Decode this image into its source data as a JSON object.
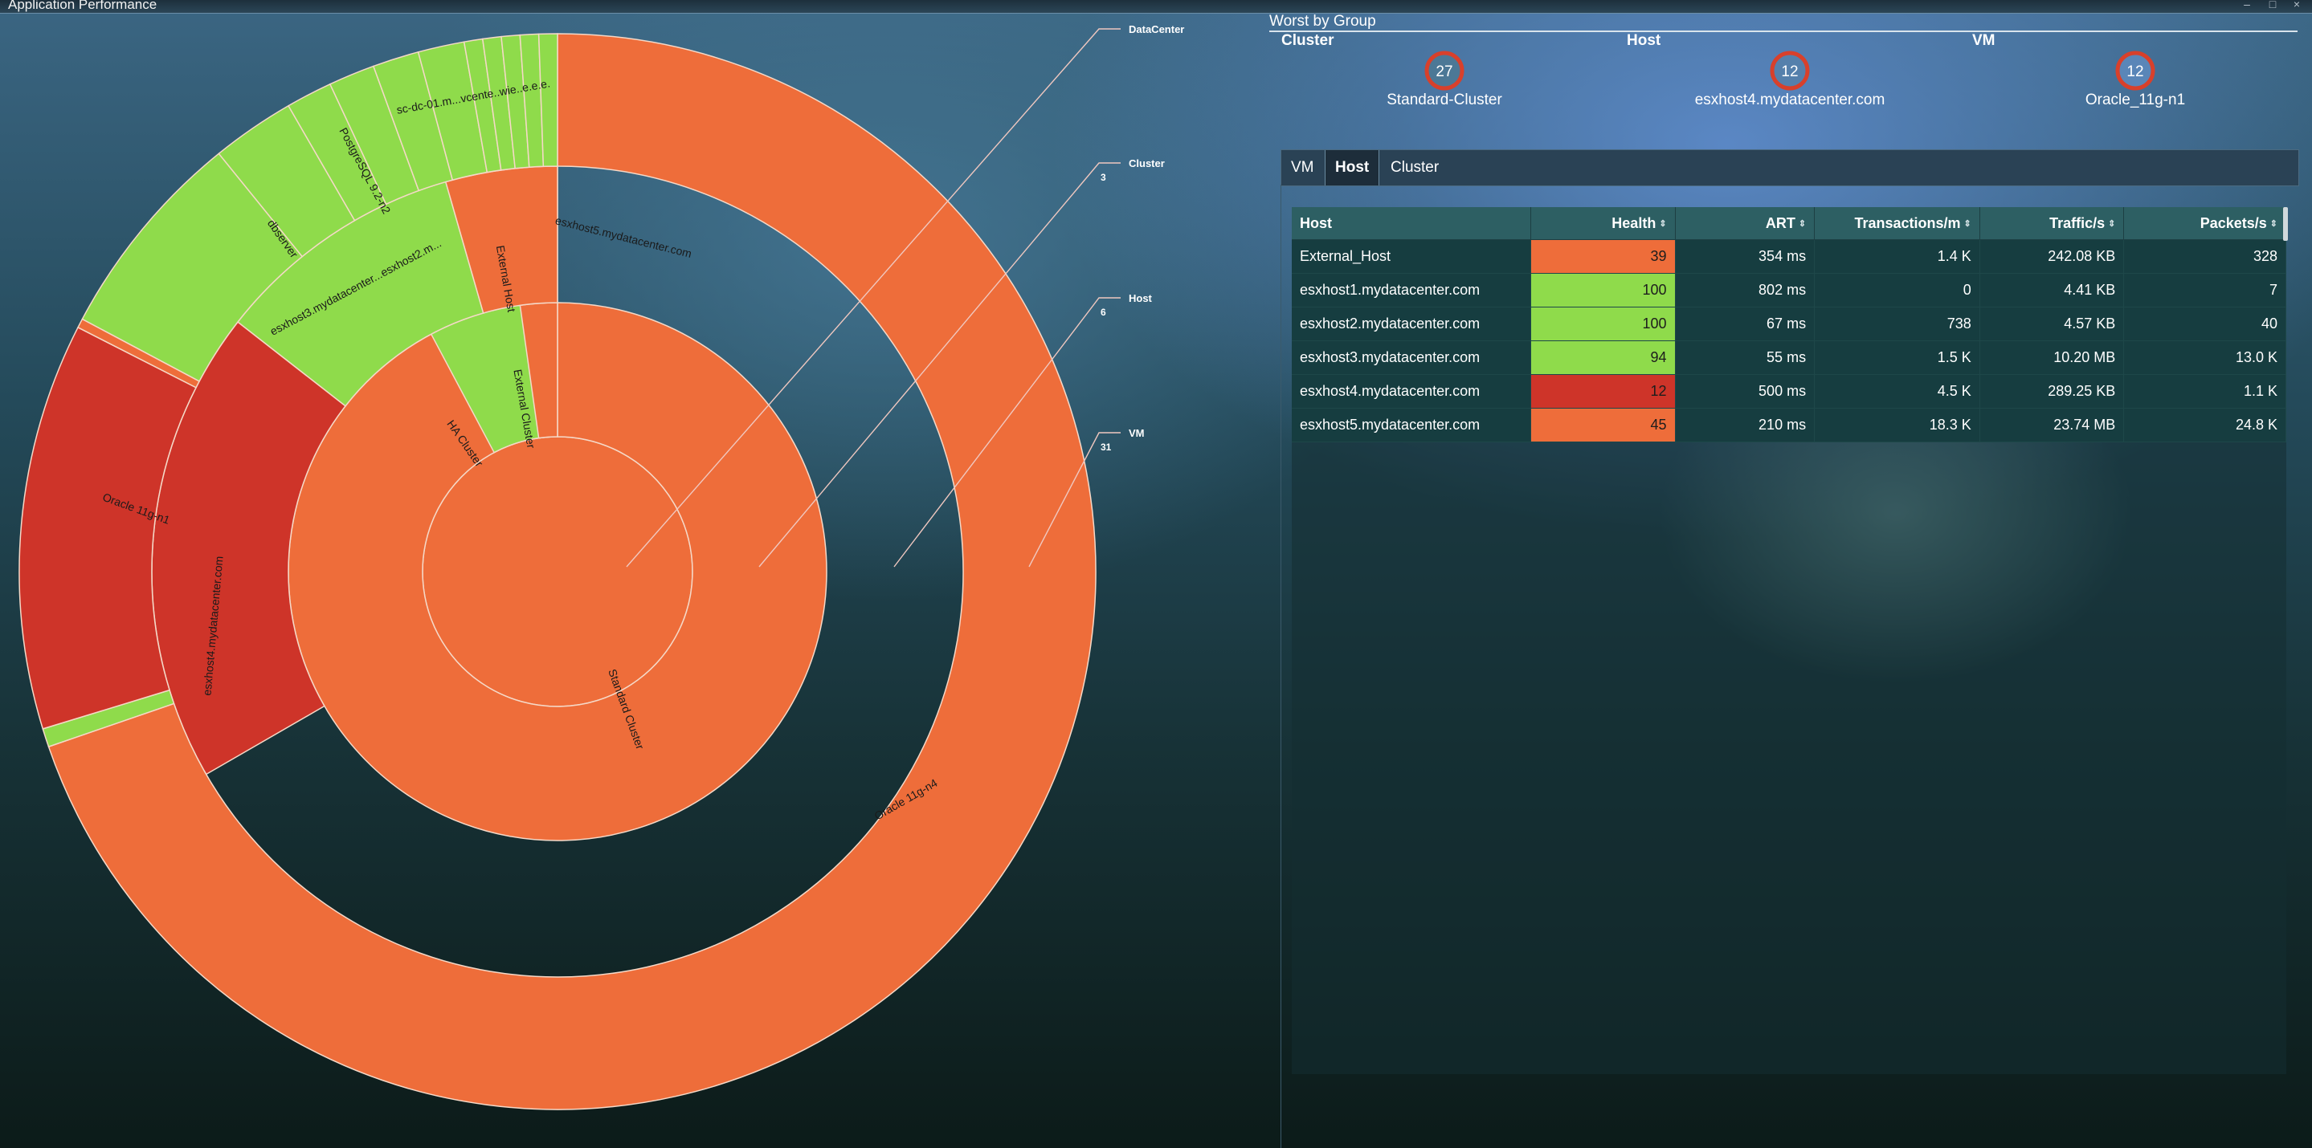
{
  "window": {
    "title": "Application Performance"
  },
  "colors": {
    "orange": "#ee6d3a",
    "green": "#8fdb4b",
    "red": "#ce3429",
    "gaugeRing": "#d8402b"
  },
  "sunburst": {
    "labels": {
      "outer_host": "esxhost5.mydatacenter.com",
      "external_host": "External Host",
      "external_cluster": "External Cluster",
      "ha_cluster": "HA Cluster",
      "standard_cluster": "Standard Cluster",
      "oracle_n4": "Oracle 11g-n4",
      "oracle_n1": "Oracle 11g-n1",
      "esxhost4": "esxhost4.mydatacenter.com",
      "esxhost3_2": "esxhost3.mydatacenter...esxhost2.m...",
      "dbserver": "dbserver",
      "postgres": "PostgreSQL 9.2-n2",
      "scdc": "sc-dc-01.m...vcente..wie..e.e.e."
    },
    "legend": [
      {
        "name": "DataCenter",
        "count": ""
      },
      {
        "name": "Cluster",
        "count": "3"
      },
      {
        "name": "Host",
        "count": "6"
      },
      {
        "name": "VM",
        "count": "31"
      }
    ]
  },
  "worst": {
    "title": "Worst by Group",
    "groups": [
      {
        "label": "Cluster",
        "value": "27",
        "name": "Standard-Cluster"
      },
      {
        "label": "Host",
        "value": "12",
        "name": "esxhost4.mydatacenter.com"
      },
      {
        "label": "VM",
        "value": "12",
        "name": "Oracle_11g-n1"
      }
    ]
  },
  "tabs": [
    {
      "label": "VM",
      "active": false
    },
    {
      "label": "Host",
      "active": true
    },
    {
      "label": "Cluster",
      "active": false
    }
  ],
  "table": {
    "columns": [
      "Host",
      "Health",
      "ART",
      "Transactions/m",
      "Traffic/s",
      "Packets/s"
    ],
    "rows": [
      {
        "host": "External_Host",
        "health": "39",
        "health_color": "#ee6d3a",
        "art": "354 ms",
        "tx": "1.4 K",
        "traffic": "242.08 KB",
        "packets": "328"
      },
      {
        "host": "esxhost1.mydatacenter.com",
        "health": "100",
        "health_color": "#8fdb4b",
        "art": "802 ms",
        "tx": "0",
        "traffic": "4.41 KB",
        "packets": "7"
      },
      {
        "host": "esxhost2.mydatacenter.com",
        "health": "100",
        "health_color": "#8fdb4b",
        "art": "67 ms",
        "tx": "738",
        "traffic": "4.57 KB",
        "packets": "40"
      },
      {
        "host": "esxhost3.mydatacenter.com",
        "health": "94",
        "health_color": "#8fdb4b",
        "art": "55 ms",
        "tx": "1.5 K",
        "traffic": "10.20 MB",
        "packets": "13.0 K"
      },
      {
        "host": "esxhost4.mydatacenter.com",
        "health": "12",
        "health_color": "#ce3429",
        "art": "500 ms",
        "tx": "4.5 K",
        "traffic": "289.25 KB",
        "packets": "1.1 K"
      },
      {
        "host": "esxhost5.mydatacenter.com",
        "health": "45",
        "health_color": "#ee6d3a",
        "art": "210 ms",
        "tx": "18.3 K",
        "traffic": "23.74 MB",
        "packets": "24.8 K"
      }
    ]
  }
}
